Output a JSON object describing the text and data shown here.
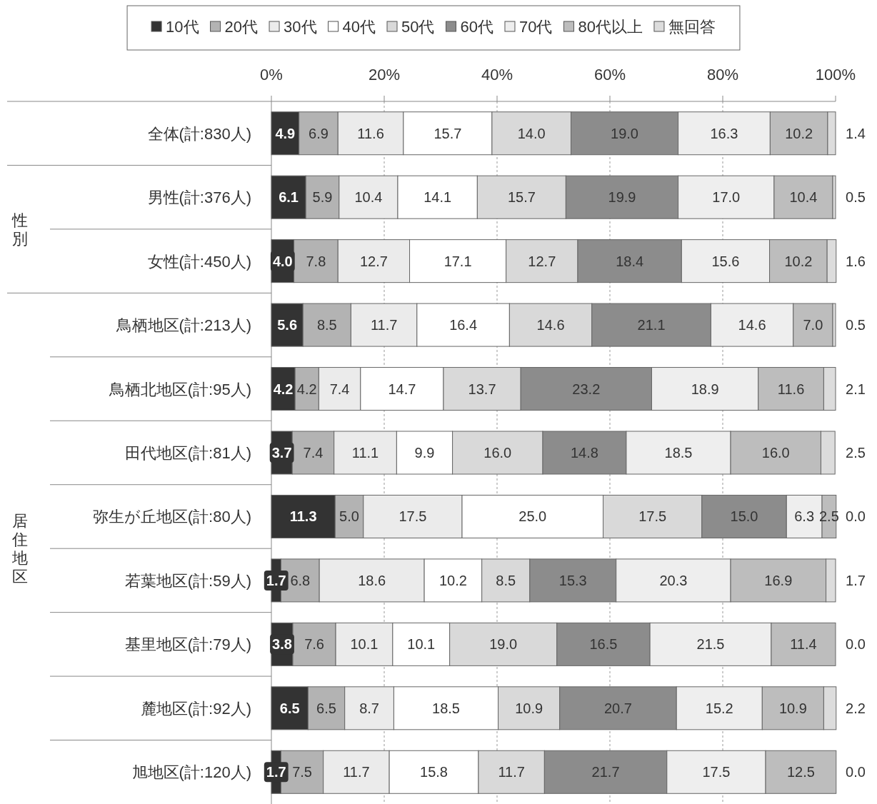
{
  "chart_data": {
    "type": "bar",
    "orientation": "horizontal",
    "stacked": true,
    "categories": [
      "全体(計:830人)",
      "男性(計:376人)",
      "女性(計:450人)",
      "鳥栖地区(計:213人)",
      "鳥栖北地区(計:95人)",
      "田代地区(計:81人)",
      "弥生が丘地区(計:80人)",
      "若葉地区(計:59人)",
      "基里地区(計:79人)",
      "麓地区(計:92人)",
      "旭地区(計:120人)"
    ],
    "series": [
      {
        "name": "10代",
        "color": "#333333",
        "values": [
          4.9,
          6.1,
          4.0,
          5.6,
          4.2,
          3.7,
          11.3,
          1.7,
          3.8,
          6.5,
          1.7
        ],
        "value_labels": [
          "4.9",
          "6.1",
          "4.0",
          "5.6",
          "4.2",
          "3.7",
          "11.3",
          "1.7",
          "3.8",
          "6.5",
          "1.7"
        ]
      },
      {
        "name": "20代",
        "color": "#b3b3b3",
        "values": [
          6.9,
          5.9,
          7.8,
          8.5,
          4.2,
          7.4,
          5.0,
          6.8,
          7.6,
          6.5,
          7.5
        ],
        "value_labels": [
          "6.9",
          "5.9",
          "7.8",
          "8.5",
          "4.2",
          "7.4",
          "5.0",
          "6.8",
          "7.6",
          "6.5",
          "7.5"
        ]
      },
      {
        "name": "30代",
        "color": "#ebebeb",
        "values": [
          11.6,
          10.4,
          12.7,
          11.7,
          7.4,
          11.1,
          17.5,
          18.6,
          10.1,
          8.7,
          11.7
        ],
        "value_labels": [
          "11.6",
          "10.4",
          "12.7",
          "11.7",
          "7.4",
          "11.1",
          "17.5",
          "18.6",
          "10.1",
          "8.7",
          "11.7"
        ]
      },
      {
        "name": "40代",
        "color": "#ffffff",
        "values": [
          15.7,
          14.1,
          17.1,
          16.4,
          14.7,
          9.9,
          25.0,
          10.2,
          10.1,
          18.5,
          15.8
        ],
        "value_labels": [
          "15.7",
          "14.1",
          "17.1",
          "16.4",
          "14.7",
          "9.9",
          "25.0",
          "10.2",
          "10.1",
          "18.5",
          "15.8"
        ]
      },
      {
        "name": "50代",
        "color": "#d9d9d9",
        "values": [
          14.0,
          15.7,
          12.7,
          14.6,
          13.7,
          16.0,
          17.5,
          8.5,
          19.0,
          10.9,
          11.7
        ],
        "value_labels": [
          "14.0",
          "15.7",
          "12.7",
          "14.6",
          "13.7",
          "16.0",
          "17.5",
          "8.5",
          "19.0",
          "10.9",
          "11.7"
        ]
      },
      {
        "name": "60代",
        "color": "#8c8c8c",
        "values": [
          19.0,
          19.9,
          18.4,
          21.1,
          23.2,
          14.8,
          15.0,
          15.3,
          16.5,
          20.7,
          21.7
        ],
        "value_labels": [
          "19.0",
          "19.9",
          "18.4",
          "21.1",
          "23.2",
          "14.8",
          "15.0",
          "15.3",
          "16.5",
          "20.7",
          "21.7"
        ]
      },
      {
        "name": "70代",
        "color": "#eeeeee",
        "values": [
          16.3,
          17.0,
          15.6,
          14.6,
          18.9,
          18.5,
          6.3,
          20.3,
          21.5,
          15.2,
          17.5
        ],
        "value_labels": [
          "16.3",
          "17.0",
          "15.6",
          "14.6",
          "18.9",
          "18.5",
          "6.3",
          "20.3",
          "21.5",
          "15.2",
          "17.5"
        ]
      },
      {
        "name": "80代以上",
        "color": "#bdbdbd",
        "values": [
          10.2,
          10.4,
          10.2,
          7.0,
          11.6,
          16.0,
          2.5,
          16.9,
          11.4,
          10.9,
          12.5
        ],
        "value_labels": [
          "10.2",
          "10.4",
          "10.2",
          "7.0",
          "11.6",
          "16.0",
          "2.5",
          "16.9",
          "11.4",
          "10.9",
          "12.5"
        ]
      },
      {
        "name": "無回答",
        "color": "#dcdcdc",
        "values": [
          1.4,
          0.5,
          1.6,
          0.5,
          2.1,
          2.5,
          0.0,
          1.7,
          0.0,
          2.2,
          0.0
        ],
        "value_labels": [
          "1.4",
          "0.5",
          "1.6",
          "0.5",
          "2.1",
          "2.5",
          "0.0",
          "1.7",
          "0.0",
          "2.2",
          "0.0"
        ]
      }
    ],
    "xlim": [
      0,
      100
    ],
    "xticks": [
      {
        "value": 0,
        "label": "0%"
      },
      {
        "value": 20,
        "label": "20%"
      },
      {
        "value": 40,
        "label": "40%"
      },
      {
        "value": 60,
        "label": "60%"
      },
      {
        "value": 80,
        "label": "80%"
      },
      {
        "value": 100,
        "label": "100%"
      }
    ],
    "grid": "x",
    "legend": "top",
    "annotations": [
      "性別",
      "居住地区"
    ]
  }
}
